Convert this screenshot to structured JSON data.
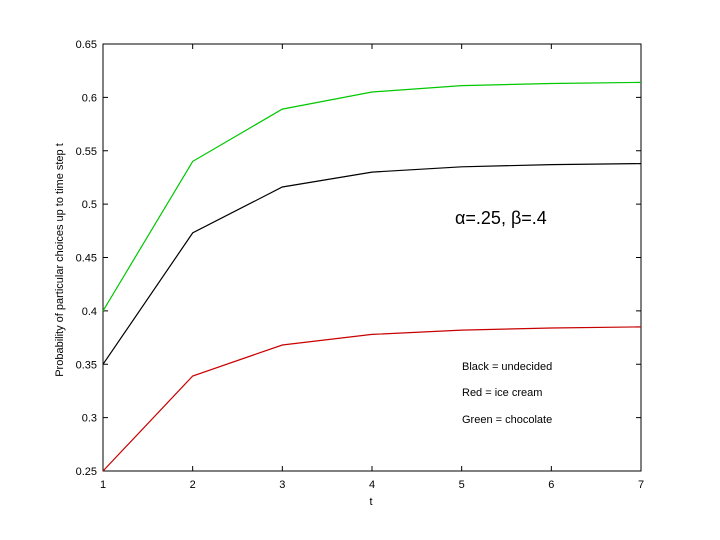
{
  "chart_data": {
    "type": "line",
    "title": "",
    "xlabel": "t",
    "ylabel": "Probability of particular choices up to time step t",
    "x": [
      1,
      2,
      3,
      4,
      5,
      6,
      7
    ],
    "xlim": [
      1,
      7
    ],
    "ylim": [
      0.25,
      0.65
    ],
    "xticks": [
      "1",
      "2",
      "3",
      "4",
      "5",
      "6",
      "7"
    ],
    "yticks": [
      "0.25",
      "0.3",
      "0.35",
      "0.4",
      "0.45",
      "0.5",
      "0.55",
      "0.6",
      "0.65"
    ],
    "grid": false,
    "series": [
      {
        "name": "Green = chocolate",
        "color": "#00c800",
        "values": [
          0.4,
          0.54,
          0.589,
          0.605,
          0.611,
          0.613,
          0.614
        ]
      },
      {
        "name": "Black = undecided",
        "color": "#000000",
        "values": [
          0.35,
          0.473,
          0.516,
          0.53,
          0.535,
          0.537,
          0.538
        ]
      },
      {
        "name": "Red = ice cream",
        "color": "#c80000",
        "values": [
          0.25,
          0.339,
          0.368,
          0.378,
          0.382,
          0.384,
          0.385
        ]
      }
    ],
    "legend": {
      "placement": "bottom-right",
      "entries": [
        "Black = undecided",
        "Red = ice cream",
        "Green = chocolate"
      ]
    },
    "annotation": "α=.25, β=.4"
  }
}
